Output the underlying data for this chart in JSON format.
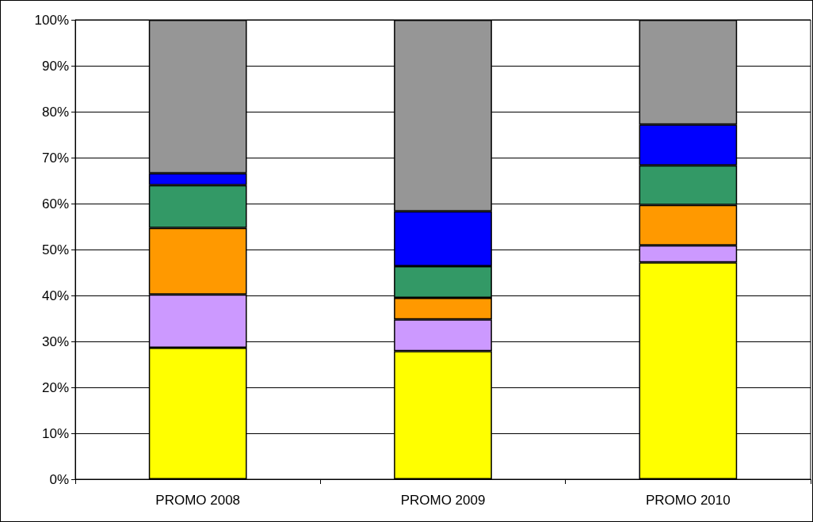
{
  "chart_data": {
    "type": "bar",
    "stacked": true,
    "categories": [
      "PROMO 2008",
      "PROMO 2009",
      "PROMO 2010"
    ],
    "series": [
      {
        "color": "#ffff00",
        "values": [
          28.6,
          27.9,
          47.2
        ]
      },
      {
        "color": "#cc99ff",
        "values": [
          11.6,
          6.9,
          3.7
        ]
      },
      {
        "color": "#ff9900",
        "values": [
          14.5,
          4.7,
          8.8
        ]
      },
      {
        "color": "#339966",
        "values": [
          9.3,
          6.9,
          8.6
        ]
      },
      {
        "color": "#0000ff",
        "values": [
          2.6,
          11.9,
          8.9
        ]
      },
      {
        "color": "#969696",
        "values": [
          33.4,
          41.7,
          22.8
        ]
      }
    ],
    "ylim": [
      0,
      100
    ],
    "yticks": [
      {
        "value": 0,
        "label": "0%"
      },
      {
        "value": 10,
        "label": "10%"
      },
      {
        "value": 20,
        "label": "20%"
      },
      {
        "value": 30,
        "label": "30%"
      },
      {
        "value": 40,
        "label": "40%"
      },
      {
        "value": 50,
        "label": "50%"
      },
      {
        "value": 60,
        "label": "60%"
      },
      {
        "value": 70,
        "label": "70%"
      },
      {
        "value": 80,
        "label": "80%"
      },
      {
        "value": 90,
        "label": "90%"
      },
      {
        "value": 100,
        "label": "100%"
      }
    ],
    "grid": "y"
  }
}
